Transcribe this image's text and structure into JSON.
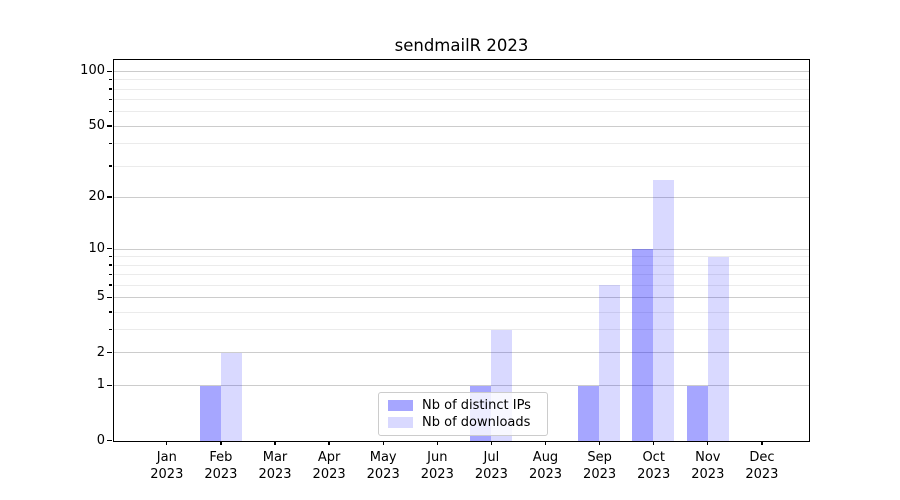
{
  "title": "sendmailR 2023",
  "chart_data": {
    "type": "bar",
    "title": "sendmailR 2023",
    "categories": [
      "Jan",
      "Feb",
      "Mar",
      "Apr",
      "May",
      "Jun",
      "Jul",
      "Aug",
      "Sep",
      "Oct",
      "Nov",
      "Dec"
    ],
    "category_year": "2023",
    "series": [
      {
        "name": "Nb of distinct IPs",
        "color": "rgba(0,0,255,0.35)",
        "values": [
          0,
          1,
          0,
          0,
          0,
          0,
          1,
          0,
          1,
          10,
          1,
          0
        ]
      },
      {
        "name": "Nb of downloads",
        "color": "rgba(0,0,255,0.15)",
        "values": [
          0,
          2,
          0,
          0,
          0,
          0,
          3,
          0,
          6,
          25,
          9,
          0
        ]
      }
    ],
    "xlabel": "",
    "ylabel": "",
    "y_axis": {
      "scale": "log1p",
      "ylim": [
        0,
        115
      ],
      "major_ticks": [
        0,
        1,
        2,
        5,
        10,
        20,
        50,
        100
      ],
      "minor_ticks": [
        3,
        4,
        6,
        7,
        8,
        9,
        30,
        40,
        60,
        70,
        80,
        90
      ]
    },
    "grid": true,
    "legend": {
      "position": "lower center",
      "entries": [
        "Nb of distinct IPs",
        "Nb of downloads"
      ]
    }
  },
  "colors": {
    "bar_distinct_ips": "rgba(0,0,255,0.35)",
    "bar_downloads": "rgba(0,0,255,0.15)",
    "grid_major": "#cccccc",
    "grid_minor": "#ebebeb",
    "axis": "#000000",
    "background": "#ffffff"
  }
}
